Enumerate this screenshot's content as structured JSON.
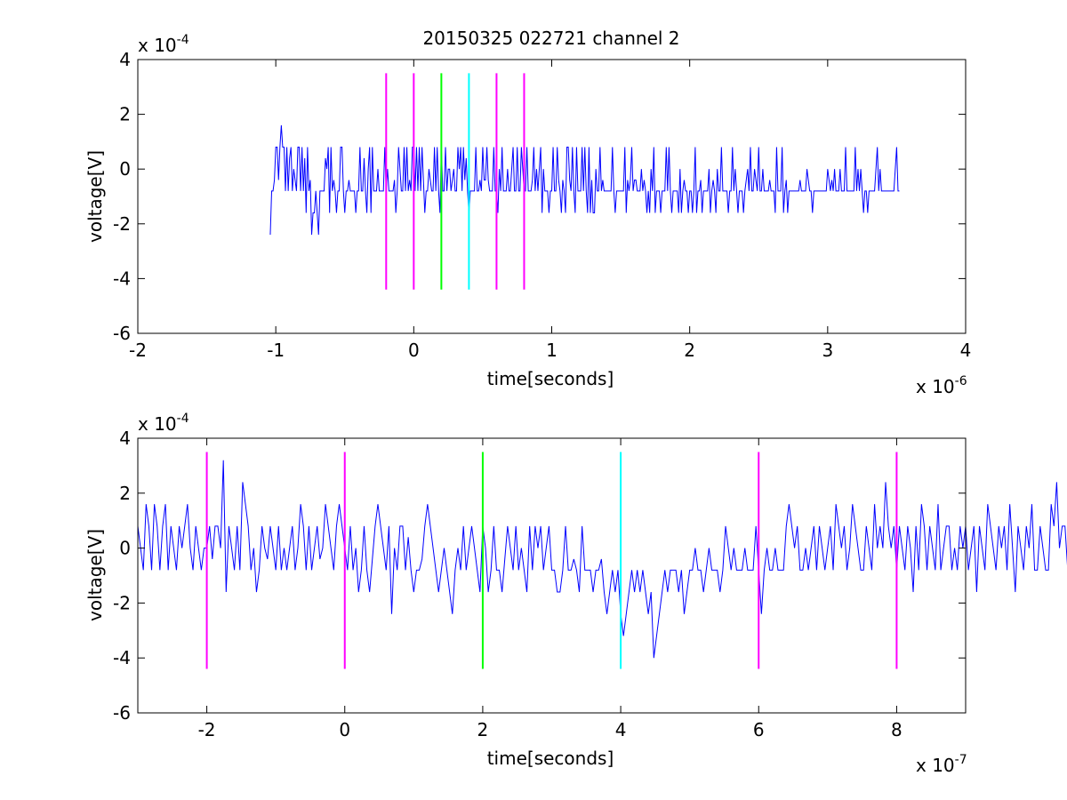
{
  "figure": {
    "title": "20150325 022721 channel 2"
  },
  "chart_data": [
    {
      "type": "line",
      "title": "20150325 022721 channel 2",
      "xlabel": "time[seconds]",
      "ylabel": "voltage[V]",
      "x_multiplier_label": "x 10",
      "x_multiplier_exp": "-6",
      "y_multiplier_label": "x 10",
      "y_multiplier_exp": "-4",
      "xlim": [
        -2,
        4
      ],
      "ylim": [
        -6,
        4
      ],
      "xticks": [
        -2,
        -1,
        0,
        1,
        2,
        3,
        4
      ],
      "yticks": [
        -6,
        -4,
        -2,
        0,
        2,
        4
      ],
      "xtick_labels": [
        "-2",
        "-1",
        "0",
        "1",
        "2",
        "3",
        "4"
      ],
      "ytick_labels": [
        "-6",
        "-4",
        "-2",
        "0",
        "2",
        "4"
      ],
      "grid": false,
      "signal": {
        "color": "#0000ff",
        "x_start": -1.04,
        "x_end": 3.94,
        "step": 0.01,
        "quantum": 0.8,
        "values": [
          -2.4,
          -0.8,
          -0.8,
          -0.4,
          0.8,
          0.8,
          -0.4,
          0.8,
          1.6,
          0.8,
          0.8,
          -0.8,
          0.8,
          -0.8,
          0.4,
          0.8,
          -0.8,
          0,
          -0.4,
          -0.8,
          0.8,
          0.8,
          -0.8,
          0.8,
          -0.8,
          0.4,
          -1.6,
          0.8,
          -0.8,
          -0.4,
          -2.4,
          -1.6,
          -1.6,
          -0.8,
          -1.6,
          -2.4,
          -0.8,
          -0.8,
          -0.8,
          -0.8,
          0.4,
          0,
          0.8,
          -1.6,
          0.8,
          -0.8,
          -0.4,
          -0.8,
          -1.6,
          -0.8,
          -0.8,
          0.8,
          0.8,
          -0.8,
          -1.6,
          -0.8,
          -0.8,
          -0.4,
          -0.8,
          -0.8,
          -0.8,
          -0.8,
          -1.6,
          -0.8,
          -0.8,
          0.8,
          -0.8,
          -0.8,
          0.4,
          -0.8,
          -1.6,
          0,
          0.8,
          -1.6,
          0.8,
          -0.8,
          -0.8,
          -0.8,
          0,
          -0.8,
          -0.8,
          -0.8,
          -0.8,
          0.8,
          -0.8,
          0,
          -0.8,
          -0.8,
          -0.8,
          -0.8,
          -0.4,
          -1.6,
          -0.8,
          0.8,
          0,
          -0.8,
          -0.8,
          0.8,
          -0.8,
          0.8,
          -0.8,
          -0.4,
          -0.8,
          0.8,
          0.8,
          -0.8,
          0.8,
          -0.8,
          0.8,
          -0.8,
          0.8,
          -0.4,
          -1.6,
          -0.8,
          -0.8,
          0,
          -0.4,
          -0.8,
          -0.8,
          0.8,
          -0.8,
          0.8,
          -0.8,
          -1.6,
          0.8,
          -0.8,
          -0.8,
          0.8,
          -0.8,
          0,
          0,
          -0.8,
          -0.4,
          0,
          -0.8,
          -0.8,
          0.8,
          0,
          0.8,
          -0.8,
          0.8,
          -0.4,
          0.4,
          -0.8,
          -1.6,
          -0.8,
          -0.8,
          -0.8,
          -0.8,
          0.8,
          -0.8,
          -0.8,
          -0.4,
          -0.8,
          0.8,
          -0.4,
          -0.4,
          0.8,
          -0.4,
          -0.8,
          -0.8,
          -0.8,
          0.8,
          -0.8,
          -0.8,
          -1.6,
          0,
          -0.8,
          0.8,
          -0.8,
          -0.8,
          -0.8,
          0,
          -0.8,
          -0.8,
          0,
          0.8,
          -0.8,
          -0.8,
          0.8,
          -0.8,
          -0.8,
          0.8,
          0,
          -0.8,
          -0.8,
          0.8,
          -0.8,
          -0.8,
          -0.8,
          -0.4,
          0.8,
          -0.8,
          0,
          -0.8,
          0,
          0.8,
          -1.6,
          0,
          -0.8,
          -0.8,
          -0.8,
          -1.6,
          -0.8,
          -0.8,
          0.8,
          -0.8,
          -0.8,
          0.8,
          -0.4,
          -0.8,
          -1.6,
          -0.4,
          -0.8,
          -1.6,
          0.8,
          0.8,
          -0.4,
          -0.8,
          0.8,
          -0.8,
          -1.6,
          0.8,
          -0.8,
          -0.8,
          -0.8,
          0.8,
          -0.8,
          0.8,
          -0.8,
          -1.6,
          0.8,
          -1.6,
          -0.4,
          -1.6,
          -1.6,
          0,
          -0.8,
          -0.8,
          0.8,
          -0.8,
          -0.4,
          -0.8,
          -0.8,
          -0.8,
          -0.8,
          -0.8,
          -0.8,
          0.8,
          -0.8,
          -1.6,
          -0.8,
          -0.8,
          -0.8,
          -0.8,
          -0.8,
          -0.8,
          0.8,
          -1.6,
          -0.4,
          -0.8,
          -0.4,
          0.8,
          -0.8,
          -0.4,
          -0.4,
          -0.8,
          -0.8,
          -0.8,
          0,
          -0.8,
          -0.4,
          -0.8,
          -1.6,
          -0.8,
          -1.6,
          0,
          -0.8,
          0.8,
          -1.6,
          -0.8,
          -0.8,
          -0.8,
          -1.6,
          -0.8,
          -0.8,
          -0.8,
          0.8,
          -0.8,
          0.8,
          -0.8,
          -1.6,
          -0.8,
          -0.8,
          -0.8,
          -0.8,
          -1.6,
          0,
          -1.6,
          -0.8,
          -0.4,
          -0.8,
          -0.8,
          -1.6,
          -0.8,
          -0.8,
          -1.6,
          -0.8,
          0.8,
          -1.6,
          -0.8,
          -0.8,
          -0.4,
          -1.6,
          -0.8,
          -0.8,
          -0.8,
          -0.8,
          0,
          -1.6,
          -0.8,
          -0.4,
          -0.8,
          -1.6,
          0,
          -0.8,
          -0.8,
          0.8,
          -0.8,
          -0.8,
          -0.8,
          -0.8,
          -1.6,
          -0.8,
          -0.8,
          0.8,
          -0.8,
          0,
          -0.8,
          -1.6,
          -0.8,
          -0.8,
          -0.8,
          -1.6,
          -0.8,
          -0.4,
          0,
          -0.8,
          0.8,
          -0.8,
          -0.8,
          0,
          -0.4,
          -0.8,
          0.8,
          -0.8,
          -0.8,
          0,
          -0.8,
          -0.8,
          -0.8,
          -0.8,
          -0.4,
          -0.8,
          -0.8,
          -0.8,
          -1.6,
          0.8,
          -0.8,
          -0.8,
          -0.8,
          0.8,
          -1.6,
          -0.8,
          -0.4,
          -1.6,
          -0.8,
          -0.8,
          -0.8,
          -0.8,
          -0.8,
          -0.8,
          -0.8,
          -0.8,
          -0.4,
          -0.8,
          -0.8,
          -0.8,
          -0.8,
          0,
          -0.4,
          -0.8,
          -0.8,
          -1.6,
          -0.8,
          -0.8,
          -0.8,
          -0.8,
          -0.8,
          -0.8,
          -0.8,
          -0.8,
          -0.8,
          -0.8,
          0,
          -0.4,
          -0.8,
          -0.4,
          -0.8,
          0,
          -0.8,
          -0.8,
          -0.8,
          0,
          -0.8,
          -0.8,
          -0.8,
          0.8,
          -0.8,
          -0.8,
          -0.8,
          -0.8,
          -0.8,
          -0.8,
          0.8,
          -0.8,
          0,
          -0.8,
          0,
          -0.8,
          -1.6,
          -0.8,
          -0.8,
          -1.6,
          -0.8,
          -0.8,
          -0.8,
          -0.8,
          -0.8,
          0,
          0.8,
          -0.8,
          0,
          -0.8,
          -0.8,
          -0.8,
          -0.8,
          -0.8,
          -0.8,
          -0.8,
          -0.8,
          -0.8,
          -0.8,
          0,
          0.8,
          -0.8,
          -0.8
        ]
      },
      "markers": [
        {
          "x": -0.2,
          "color": "#ff00ff"
        },
        {
          "x": 0.0,
          "color": "#ff00ff"
        },
        {
          "x": 0.2,
          "color": "#00ff00"
        },
        {
          "x": 0.4,
          "color": "#00ffff"
        },
        {
          "x": 0.6,
          "color": "#ff00ff"
        },
        {
          "x": 0.8,
          "color": "#ff00ff"
        }
      ],
      "marker_range": [
        -4.4,
        3.5
      ]
    },
    {
      "type": "line",
      "title": "",
      "xlabel": "time[seconds]",
      "ylabel": "voltage[V]",
      "x_multiplier_label": "x 10",
      "x_multiplier_exp": "-7",
      "y_multiplier_label": "x 10",
      "y_multiplier_exp": "-4",
      "xlim": [
        -3,
        9
      ],
      "ylim": [
        -6,
        4
      ],
      "xticks": [
        -2,
        0,
        2,
        4,
        6,
        8
      ],
      "yticks": [
        -6,
        -4,
        -2,
        0,
        2,
        4
      ],
      "xtick_labels": [
        "-2",
        "0",
        "2",
        "4",
        "6",
        "8"
      ],
      "ytick_labels": [
        "-6",
        "-4",
        "-2",
        "0",
        "2",
        "4"
      ],
      "grid": false,
      "signal": {
        "color": "#0000ff",
        "x_start": -3,
        "step": 0.04,
        "values": [
          0.8,
          0,
          -0.8,
          1.6,
          0.8,
          -0.8,
          1.6,
          0.8,
          -0.8,
          0.8,
          1.6,
          -0.8,
          0.8,
          0,
          -0.8,
          0.8,
          0,
          0.8,
          1.6,
          0,
          -0.8,
          0.8,
          0,
          -0.8,
          0,
          0,
          0.8,
          -0.4,
          0.8,
          0.8,
          0,
          3.2,
          -1.6,
          0.8,
          0,
          -0.8,
          0.8,
          -0.8,
          2.4,
          1.6,
          0.8,
          -0.8,
          0,
          -1.6,
          -0.8,
          0.8,
          0,
          -0.4,
          0.8,
          0,
          -0.8,
          0.8,
          -0.8,
          0,
          -0.8,
          0,
          0.8,
          -0.8,
          0,
          1.6,
          0.8,
          -0.8,
          0.8,
          -0.8,
          0,
          0.8,
          -0.4,
          0,
          1.6,
          0.8,
          0,
          -0.8,
          0.8,
          1.6,
          0.8,
          0,
          -0.8,
          0.8,
          -0.8,
          0,
          -1.6,
          -0.8,
          0.8,
          -0.8,
          -1.6,
          -0.4,
          0.8,
          1.6,
          0.8,
          0,
          -0.8,
          0.8,
          -2.4,
          0,
          -0.8,
          0.8,
          0.8,
          -0.8,
          0.4,
          -0.8,
          -1.6,
          -0.8,
          -0.8,
          -0.4,
          0.8,
          1.6,
          0.8,
          0,
          -0.8,
          -1.6,
          -0.8,
          0,
          -0.8,
          -1.6,
          -2.4,
          -0.8,
          0,
          -0.8,
          0.8,
          -0.8,
          0,
          0.8,
          0,
          -0.8,
          -1.6,
          0.8,
          0,
          -1.6,
          -0.8,
          0.8,
          -0.8,
          -0.8,
          -1.6,
          -0.4,
          0.8,
          0,
          -0.8,
          0.8,
          -0.8,
          0,
          -0.8,
          -1.6,
          0.8,
          -0.8,
          0.8,
          0,
          0.8,
          -0.8,
          0,
          0.8,
          -0.8,
          -0.8,
          -1.6,
          -1.6,
          -0.8,
          0.8,
          -0.8,
          -0.8,
          -0.4,
          -0.8,
          -1.6,
          0.8,
          -0.8,
          -0.8,
          -0.8,
          -1.6,
          -0.8,
          -0.8,
          -0.4,
          -1.6,
          -2.4,
          -1.6,
          -0.8,
          -1.6,
          -0.8,
          -2.4,
          -3.2,
          -2.4,
          -1.6,
          -0.8,
          -1.6,
          -0.8,
          -1.6,
          -0.8,
          -1.6,
          -2.4,
          -1.6,
          -4,
          -3.2,
          -2.4,
          -1.6,
          -0.8,
          -1.6,
          -0.8,
          -0.8,
          -0.8,
          -1.6,
          -0.8,
          -2.4,
          -1.6,
          -0.8,
          -0.8,
          0,
          -0.8,
          -0.8,
          -1.6,
          -0.8,
          0,
          -0.8,
          -0.8,
          -0.8,
          -1.6,
          -0.8,
          0.8,
          0,
          -0.8,
          0,
          -0.8,
          -0.8,
          -0.8,
          0,
          -0.8,
          -0.8,
          -0.8,
          0.8,
          -0.8,
          -2.4,
          -0.8,
          0,
          -0.8,
          -0.8,
          0,
          -0.8,
          -0.8,
          -0.8,
          0.8,
          1.6,
          0.8,
          0,
          0.8,
          -0.8,
          -0.8,
          0,
          -0.8,
          0,
          0.8,
          -0.8,
          0.8,
          0,
          -0.8,
          0,
          0.8,
          -0.8,
          1.6,
          0.8,
          0,
          0.8,
          -0.8,
          0,
          1.6,
          0.8,
          0,
          -0.8,
          -0.8,
          0.8,
          0,
          -0.8,
          1.6,
          0,
          0.8,
          0,
          2.4,
          0.8,
          0,
          0.8,
          -0.8,
          0.8,
          0,
          -0.8,
          0.8,
          0,
          -1.6,
          0.8,
          -0.8,
          1.6,
          0.8,
          -0.8,
          0.8,
          0,
          -0.8,
          1.6,
          -0.8,
          0,
          0.8,
          0.8,
          -0.8,
          0,
          -0.8,
          0.8,
          0,
          0.8,
          -0.8,
          0,
          0.8,
          -1.6,
          0.8,
          0,
          -0.8,
          1.6,
          0.8,
          0,
          -0.8,
          0.8,
          0,
          0.8,
          -0.8,
          1.6,
          0,
          -1.6,
          0.8,
          0,
          -0.8,
          0.8,
          0,
          1.6,
          -0.8,
          -0.8,
          0.8,
          0,
          -0.8,
          -0.8,
          1.6,
          0.8,
          2.4,
          0,
          0.8,
          0.8,
          -0.8,
          0,
          -0.8,
          0.8,
          0,
          0.8,
          -1.6,
          0.8,
          0,
          0.8,
          0.8,
          -0.8,
          1.6,
          0,
          -0.8,
          1.6,
          0,
          0.8,
          1.6,
          0,
          -0.8,
          0.8,
          0.8,
          0.8,
          -0.8,
          0,
          -2.4
        ]
      },
      "markers": [
        {
          "x": -2,
          "color": "#ff00ff"
        },
        {
          "x": 0,
          "color": "#ff00ff"
        },
        {
          "x": 2,
          "color": "#00ff00"
        },
        {
          "x": 4,
          "color": "#00ffff"
        },
        {
          "x": 6,
          "color": "#ff00ff"
        },
        {
          "x": 8,
          "color": "#ff00ff"
        }
      ],
      "marker_range": [
        -4.4,
        3.5
      ]
    }
  ]
}
